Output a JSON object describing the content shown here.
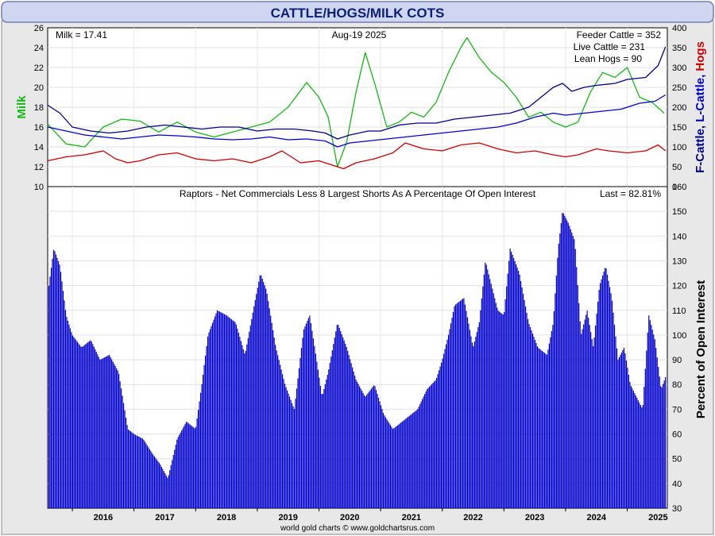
{
  "title": "CATTLE/HOGS/MILK COTS",
  "date": "Aug-19  2025",
  "footer": "world gold charts © www.goldchartsrus.com",
  "colors": {
    "milk": "#14b814",
    "feeder": "#00008b",
    "live": "#0000cc",
    "hogs": "#cc0000",
    "bars": "#0000cc",
    "title_text": "#0b1f7a",
    "frame": "#6f7fb8"
  },
  "chart_data": [
    {
      "type": "line",
      "panel": "prices",
      "years": [
        "2016",
        "2017",
        "2018",
        "2019",
        "2020",
        "2021",
        "2022",
        "2023",
        "2024",
        "2025"
      ],
      "left_axis": {
        "label": "Milk",
        "ylim": [
          10,
          26
        ],
        "ticks": [
          10,
          12,
          14,
          16,
          18,
          20,
          22,
          24,
          26
        ]
      },
      "right_axis": {
        "labels": [
          {
            "text": "F-Cattle,",
            "color": "#00008b"
          },
          {
            "text": " L-Cattle,",
            "color": "#0000cc"
          },
          {
            "text": " Hogs",
            "color": "#cc0000"
          }
        ],
        "ylim": [
          0,
          400
        ],
        "ticks": [
          0,
          50,
          100,
          150,
          200,
          250,
          300,
          350,
          400
        ]
      },
      "readouts": {
        "milk": "Milk = 17.41",
        "feeder": "Feeder Cattle = 352",
        "live": "Live Cattle = 231",
        "hogs": "Lean Hogs = 90"
      },
      "series": [
        {
          "name": "Milk",
          "axis": "left",
          "x": [
            2015.6,
            2015.9,
            2016.2,
            2016.5,
            2016.8,
            2017.1,
            2017.4,
            2017.7,
            2018.0,
            2018.3,
            2018.6,
            2018.9,
            2019.2,
            2019.5,
            2019.8,
            2020.0,
            2020.15,
            2020.3,
            2020.45,
            2020.6,
            2020.75,
            2020.9,
            2021.1,
            2021.3,
            2021.5,
            2021.7,
            2021.9,
            2022.1,
            2022.3,
            2022.4,
            2022.6,
            2022.8,
            2023.0,
            2023.2,
            2023.4,
            2023.6,
            2023.8,
            2024.0,
            2024.2,
            2024.4,
            2024.6,
            2024.8,
            2025.0,
            2025.2,
            2025.4,
            2025.6
          ],
          "y": [
            16.3,
            14.3,
            14.0,
            16.0,
            16.8,
            16.6,
            15.5,
            16.5,
            15.5,
            15.0,
            15.5,
            16.0,
            16.5,
            18.0,
            20.5,
            19.0,
            17.0,
            12.0,
            14.5,
            19.5,
            23.5,
            20.5,
            16.0,
            16.5,
            17.5,
            17.0,
            18.5,
            21.5,
            24.0,
            25.0,
            23.0,
            21.5,
            20.5,
            19.0,
            17.0,
            17.5,
            16.5,
            16.0,
            16.5,
            19.5,
            21.5,
            21.0,
            22.0,
            19.0,
            18.5,
            17.4
          ]
        },
        {
          "name": "Feeder Cattle",
          "axis": "right",
          "x": [
            2015.6,
            2015.8,
            2016.0,
            2016.3,
            2016.6,
            2016.9,
            2017.2,
            2017.5,
            2017.8,
            2018.1,
            2018.4,
            2018.7,
            2019.0,
            2019.3,
            2019.6,
            2019.9,
            2020.1,
            2020.3,
            2020.5,
            2020.8,
            2021.0,
            2021.3,
            2021.6,
            2021.9,
            2022.2,
            2022.5,
            2022.8,
            2023.1,
            2023.4,
            2023.6,
            2023.8,
            2023.95,
            2024.1,
            2024.3,
            2024.5,
            2024.8,
            2025.0,
            2025.3,
            2025.5,
            2025.62
          ],
          "y": [
            205,
            185,
            150,
            140,
            135,
            140,
            150,
            155,
            150,
            145,
            150,
            150,
            140,
            145,
            145,
            140,
            135,
            120,
            130,
            140,
            140,
            155,
            160,
            160,
            170,
            175,
            180,
            185,
            200,
            225,
            250,
            260,
            240,
            250,
            255,
            260,
            270,
            275,
            305,
            352
          ]
        },
        {
          "name": "Live Cattle",
          "axis": "right",
          "x": [
            2015.6,
            2015.9,
            2016.2,
            2016.5,
            2016.8,
            2017.1,
            2017.4,
            2017.7,
            2018.0,
            2018.3,
            2018.6,
            2018.9,
            2019.2,
            2019.5,
            2019.8,
            2020.1,
            2020.3,
            2020.5,
            2020.8,
            2021.1,
            2021.4,
            2021.7,
            2022.0,
            2022.3,
            2022.6,
            2022.9,
            2023.2,
            2023.5,
            2023.8,
            2024.0,
            2024.3,
            2024.6,
            2024.9,
            2025.2,
            2025.45,
            2025.62
          ],
          "y": [
            150,
            140,
            130,
            125,
            120,
            125,
            130,
            128,
            125,
            120,
            118,
            120,
            125,
            118,
            120,
            115,
            100,
            110,
            115,
            120,
            125,
            130,
            135,
            140,
            145,
            150,
            160,
            175,
            185,
            180,
            185,
            190,
            195,
            210,
            215,
            231
          ]
        },
        {
          "name": "Lean Hogs",
          "axis": "right",
          "x": [
            2015.6,
            2015.9,
            2016.2,
            2016.5,
            2016.7,
            2016.9,
            2017.1,
            2017.4,
            2017.7,
            2018.0,
            2018.3,
            2018.6,
            2018.9,
            2019.2,
            2019.4,
            2019.7,
            2020.0,
            2020.2,
            2020.4,
            2020.6,
            2020.9,
            2021.2,
            2021.4,
            2021.7,
            2022.0,
            2022.3,
            2022.6,
            2022.9,
            2023.2,
            2023.5,
            2023.8,
            2024.0,
            2024.2,
            2024.5,
            2024.7,
            2025.0,
            2025.3,
            2025.5,
            2025.62
          ],
          "y": [
            65,
            75,
            80,
            90,
            70,
            60,
            65,
            80,
            85,
            70,
            65,
            70,
            60,
            75,
            90,
            60,
            65,
            55,
            45,
            60,
            70,
            85,
            110,
            95,
            90,
            105,
            110,
            95,
            85,
            90,
            80,
            75,
            80,
            95,
            90,
            85,
            90,
            105,
            90
          ]
        }
      ]
    },
    {
      "type": "bar",
      "panel": "cot",
      "title": "Raptors - Net Commercials Less 8 Largest Shorts As A Percentage Of Open Interest",
      "last": "Last = 82.81%",
      "ylabel": "Percent of Open Interest",
      "ylim": [
        30,
        160
      ],
      "ticks": [
        30,
        40,
        50,
        60,
        70,
        80,
        90,
        100,
        110,
        120,
        130,
        140,
        150,
        160
      ],
      "years": [
        "2016",
        "2017",
        "2018",
        "2019",
        "2020",
        "2021",
        "2022",
        "2023",
        "2024",
        "2025"
      ],
      "x": [
        2015.62,
        2015.7,
        2015.8,
        2015.9,
        2016.0,
        2016.15,
        2016.3,
        2016.45,
        2016.6,
        2016.75,
        2016.9,
        2017.0,
        2017.15,
        2017.3,
        2017.42,
        2017.55,
        2017.7,
        2017.85,
        2018.0,
        2018.1,
        2018.2,
        2018.35,
        2018.5,
        2018.65,
        2018.8,
        2018.95,
        2019.05,
        2019.15,
        2019.3,
        2019.45,
        2019.6,
        2019.75,
        2019.85,
        2019.95,
        2020.05,
        2020.15,
        2020.3,
        2020.45,
        2020.6,
        2020.75,
        2020.9,
        2021.05,
        2021.2,
        2021.35,
        2021.5,
        2021.6,
        2021.75,
        2021.9,
        2022.0,
        2022.1,
        2022.2,
        2022.35,
        2022.5,
        2022.6,
        2022.7,
        2022.8,
        2022.9,
        2023.0,
        2023.1,
        2023.25,
        2023.4,
        2023.55,
        2023.7,
        2023.8,
        2023.88,
        2023.95,
        2024.05,
        2024.15,
        2024.25,
        2024.35,
        2024.45,
        2024.55,
        2024.65,
        2024.75,
        2024.85,
        2024.95,
        2025.05,
        2025.15,
        2025.25,
        2025.35,
        2025.45,
        2025.55,
        2025.62
      ],
      "values": [
        120,
        135,
        128,
        108,
        100,
        95,
        98,
        90,
        92,
        85,
        62,
        60,
        58,
        52,
        48,
        42,
        58,
        65,
        62,
        80,
        100,
        110,
        108,
        105,
        92,
        112,
        125,
        118,
        95,
        80,
        70,
        102,
        108,
        92,
        75,
        85,
        105,
        95,
        82,
        75,
        80,
        68,
        62,
        65,
        68,
        70,
        78,
        82,
        90,
        100,
        112,
        115,
        95,
        105,
        130,
        120,
        110,
        108,
        135,
        125,
        105,
        95,
        92,
        105,
        135,
        150,
        145,
        138,
        100,
        110,
        95,
        120,
        128,
        115,
        90,
        95,
        80,
        75,
        70,
        108,
        98,
        78,
        83
      ]
    }
  ]
}
